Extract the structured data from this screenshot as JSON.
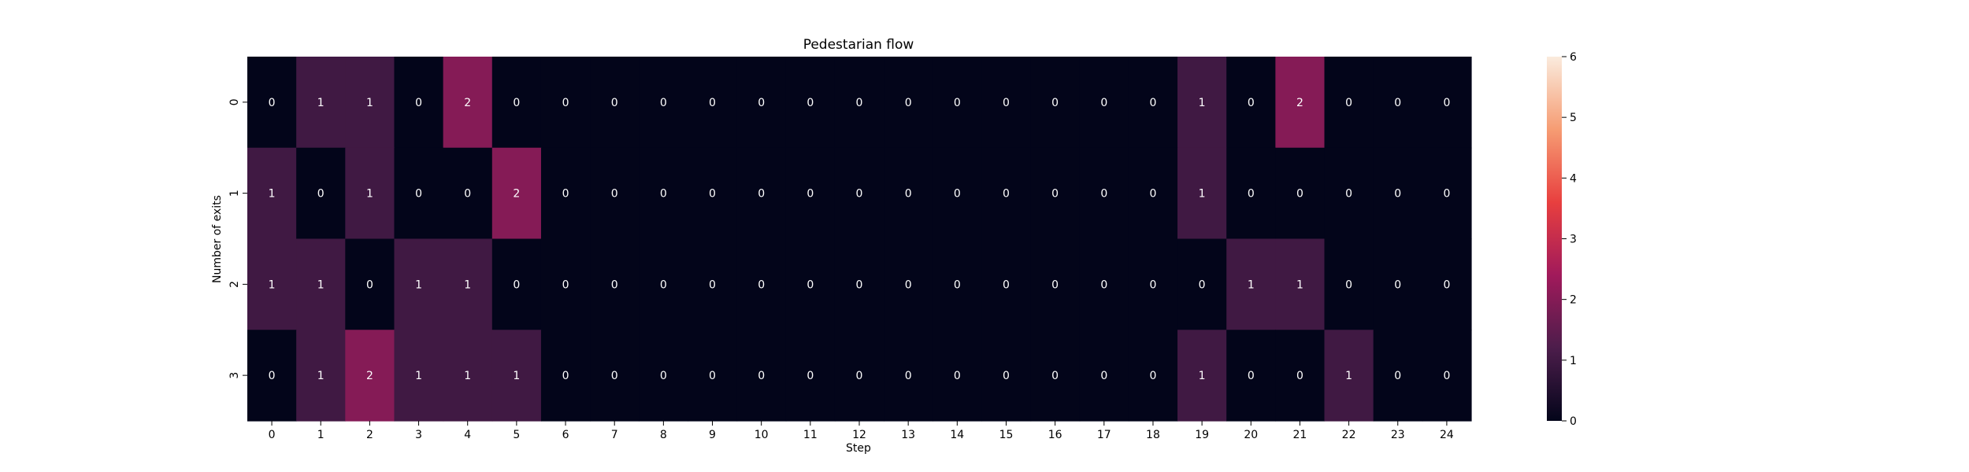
{
  "chart_data": {
    "type": "heatmap",
    "title": "Pedestarian flow",
    "xlabel": "Step",
    "ylabel": "Number of exits",
    "x_ticks": [
      "0",
      "1",
      "2",
      "3",
      "4",
      "5",
      "6",
      "7",
      "8",
      "9",
      "10",
      "11",
      "12",
      "13",
      "14",
      "15",
      "16",
      "17",
      "18",
      "19",
      "20",
      "21",
      "22",
      "23",
      "24"
    ],
    "y_ticks": [
      "0",
      "1",
      "2",
      "3"
    ],
    "values": [
      [
        0,
        1,
        1,
        0,
        2,
        0,
        0,
        0,
        0,
        0,
        0,
        0,
        0,
        0,
        0,
        0,
        0,
        0,
        0,
        1,
        0,
        2,
        0,
        0,
        0
      ],
      [
        1,
        0,
        1,
        0,
        0,
        2,
        0,
        0,
        0,
        0,
        0,
        0,
        0,
        0,
        0,
        0,
        0,
        0,
        0,
        1,
        0,
        0,
        0,
        0,
        0
      ],
      [
        1,
        1,
        0,
        1,
        1,
        0,
        0,
        0,
        0,
        0,
        0,
        0,
        0,
        0,
        0,
        0,
        0,
        0,
        0,
        0,
        1,
        1,
        0,
        0,
        0
      ],
      [
        0,
        1,
        2,
        1,
        1,
        1,
        0,
        0,
        0,
        0,
        0,
        0,
        0,
        0,
        0,
        0,
        0,
        0,
        0,
        1,
        0,
        0,
        1,
        0,
        0
      ]
    ],
    "colorbar": {
      "range": [
        0,
        6
      ],
      "ticks": [
        "0",
        "1",
        "2",
        "3",
        "4",
        "5",
        "6"
      ],
      "colormap": "rocket",
      "colors": [
        "#03051a",
        "#4c1d4b",
        "#a11a5b",
        "#e83f3f",
        "#f69c73",
        "#faebdd"
      ]
    },
    "annotate": true,
    "annotation_light_color": "#ffffff",
    "annotation_dark_color": "#262626"
  }
}
